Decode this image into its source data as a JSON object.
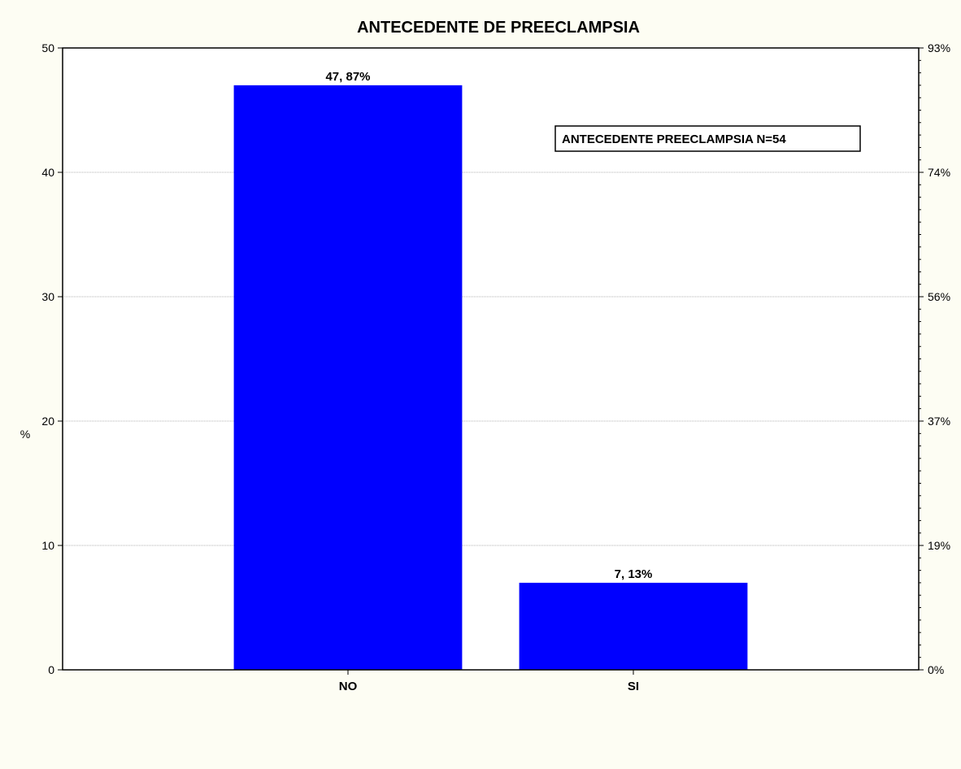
{
  "chart_data": {
    "type": "bar",
    "title": "ANTECEDENTE DE PREECLAMPSIA",
    "ylabel": "%",
    "categories": [
      "NO",
      "SI"
    ],
    "values": [
      47,
      7
    ],
    "data_labels": [
      "47, 87%",
      "7, 13%"
    ],
    "ylim": [
      0,
      50
    ],
    "yticks": [
      "0",
      "10",
      "20",
      "30",
      "40",
      "50"
    ],
    "y2ticks": [
      "0%",
      "19%",
      "37%",
      "56%",
      "74%",
      "93%"
    ],
    "annotation": "ANTECEDENTE PREECLAMPSIA N=54",
    "bar_color": "#0000ff",
    "grid": true
  }
}
